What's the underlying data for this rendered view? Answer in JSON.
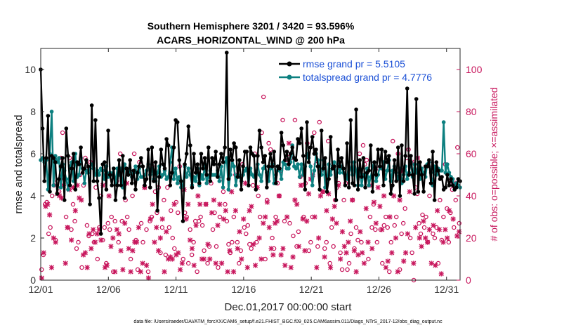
{
  "chart_data": {
    "type": "line",
    "title_line1": "Southern Hemisphere 3201 / 3420 = 93.596%",
    "title_line2": "ACARS_HORIZONTAL_WIND @ 200 hPa",
    "xlabel": "Dec.01,2017 00:00:00 start",
    "ylabel_left": "rmse and totalspread",
    "ylabel_right": "# of obs: o=possible; ×=assimilated",
    "xlim": [
      0,
      31
    ],
    "ylim_left": [
      0,
      11
    ],
    "ylim_right": [
      0,
      110
    ],
    "xtick_values": [
      0,
      5,
      10,
      15,
      20,
      25,
      30
    ],
    "xtick_labels": [
      "12/01",
      "12/06",
      "12/11",
      "12/16",
      "12/21",
      "12/26",
      "12/31"
    ],
    "ytick_left": [
      "0",
      "2",
      "4",
      "6",
      "8",
      "10"
    ],
    "ytick_right": [
      "0",
      "20",
      "40",
      "60",
      "80",
      "100"
    ],
    "colors": {
      "rmse": "#000000",
      "totalspread": "#0d8080",
      "obs": "#c8175d",
      "legend_text": "#1a4fd6"
    },
    "series": [
      {
        "name": "rmse grand pr = 5.5105",
        "color": "#000000",
        "values": [
          10.0,
          7.2,
          4.7,
          5.8,
          7.8,
          4.2,
          5.9,
          5.8,
          5.6,
          4.1,
          4.8,
          5.4,
          5.8,
          3.8,
          7.2,
          5.9,
          4.5,
          5.3,
          6.0,
          4.3,
          5.6,
          5.5,
          6.3,
          5.1,
          5.3,
          5.7,
          5.4,
          3.6,
          8.3,
          4.7,
          7.6,
          4.7,
          3.9,
          2.2,
          5.5,
          5.6,
          4.3,
          7.1,
          5.0,
          4.5,
          5.3,
          3.8,
          4.5,
          5.7,
          4.5,
          5.9,
          3.9,
          5.3,
          5.0,
          5.7,
          4.6,
          5.2,
          4.3,
          5.1,
          5.4,
          5.8,
          5.4,
          4.5,
          4.8,
          6.2,
          4.4,
          6.3,
          4.7,
          5.6,
          3.3,
          4.9,
          6.2,
          5.5,
          5.3,
          6.7,
          6.4,
          4.5,
          5.1,
          6.3,
          7.6,
          7.5,
          5.7,
          4.7,
          2.8,
          5.5,
          6.0,
          7.3,
          6.4,
          4.4,
          6.0,
          5.1,
          5.5,
          4.6,
          6.0,
          5.3,
          5.8,
          5.0,
          6.3,
          4.7,
          5.8,
          5.5,
          6.1,
          4.9,
          5.5,
          6.0,
          5.6,
          6.3,
          10.8,
          4.8,
          6.2,
          5.7,
          6.5,
          6.3,
          4.9,
          5.7,
          4.3,
          5.4,
          6.1,
          6.1,
          4.5,
          6.3,
          6.0,
          5.9,
          4.3,
          5.9,
          7.1,
          6.3,
          5.6,
          5.9,
          4.4,
          5.4,
          6.0,
          5.4,
          6.1,
          4.6,
          5.4,
          5.3,
          7.0,
          6.4,
          5.7,
          6.1,
          5.5,
          6.0,
          6.3,
          5.8,
          5.7,
          6.7,
          6.5,
          7.2,
          5.9,
          4.3,
          7.5,
          5.6,
          6.3,
          6.8,
          6.0,
          6.2,
          5.4,
          4.3,
          7.1,
          5.3,
          5.8,
          4.2,
          4.8,
          6.8,
          5.3,
          5.4,
          3.8,
          6.2,
          5.4,
          5.8,
          5.3,
          4.5,
          6.5,
          4.4,
          7.6,
          4.6,
          4.5,
          8.1,
          4.3,
          5.7,
          4.9,
          5.8,
          4.4,
          5.1,
          5.2,
          6.4,
          4.2,
          5.6,
          5.0,
          6.2,
          5.4,
          6.2,
          4.5,
          6.1,
          5.6,
          5.9,
          4.1,
          4.5,
          5.7,
          4.7,
          6.3,
          4.0,
          6.4,
          4.7,
          5.9,
          9.1,
          5.0,
          5.9,
          5.0,
          4.1,
          8.6,
          4.2,
          5.6,
          5.0,
          4.2,
          5.4,
          5.4,
          5.7,
          4.6,
          6.1,
          3.8,
          5.6,
          5.2,
          4.8,
          4.9,
          4.3,
          4.4,
          5.0,
          4.5,
          4.8,
          4.5,
          4.3,
          4.4,
          4.8,
          4.7
        ]
      },
      {
        "name": "totalspread grand pr = 4.7776",
        "color": "#0d8080",
        "values": [
          5.7,
          5.8,
          5.6,
          5.7,
          4.3,
          6.0,
          8.0,
          4.5,
          5.9,
          5.6,
          5.8,
          4.4,
          5.5,
          5.2,
          4.8,
          4.3,
          5.4,
          5.6,
          4.7,
          6.0,
          4.9,
          5.0,
          5.8,
          5.3,
          4.6,
          5.2,
          5.1,
          5.3,
          5.5,
          5.3,
          5.0,
          5.2,
          5.0,
          5.3,
          5.2,
          4.8,
          5.4,
          4.9,
          5.1,
          5.0,
          5.3,
          4.6,
          5.3,
          5.0,
          5.3,
          4.4,
          5.5,
          5.3,
          5.0,
          5.2,
          4.9,
          5.1,
          5.4,
          4.8,
          5.3,
          4.9,
          4.9,
          5.0,
          5.2,
          5.5,
          5.0,
          5.3,
          4.8,
          4.7,
          5.1,
          5.4,
          4.9,
          5.0,
          5.2,
          4.8,
          4.9,
          5.6,
          6.3,
          4.8,
          5.3,
          4.6,
          4.9,
          4.4,
          4.5,
          5.4,
          4.9,
          5.3,
          5.0,
          4.5,
          4.9,
          4.7,
          5.3,
          4.5,
          5.0,
          4.8,
          5.5,
          4.6,
          4.9,
          5.2,
          5.0,
          5.0,
          5.0,
          5.2,
          4.7,
          5.4,
          4.4,
          5.6,
          5.8,
          4.3,
          5.0,
          5.7,
          5.4,
          4.5,
          5.0,
          4.9,
          4.7,
          5.0,
          5.2,
          5.3,
          4.5,
          5.3,
          5.0,
          4.9,
          5.1,
          5.5,
          5.0,
          4.7,
          5.3,
          5.4,
          5.1,
          4.7,
          5.3,
          5.5,
          4.6,
          5.0,
          5.4,
          5.2,
          4.8,
          5.6,
          5.5,
          5.3,
          5.3,
          5.6,
          6.4,
          5.4,
          5.3,
          5.5,
          4.9,
          5.5,
          5.0,
          5.4,
          6.0,
          5.8,
          5.4,
          4.5,
          5.2,
          6.0,
          5.7,
          5.3,
          5.0,
          5.7,
          4.4,
          4.6,
          5.5,
          5.0,
          5.4,
          5.6,
          4.9,
          5.5,
          5.1,
          5.4,
          5.1,
          5.0,
          4.8,
          5.6,
          5.3,
          5.0,
          5.6,
          5.2,
          4.5,
          5.3,
          4.5,
          5.0,
          4.9,
          5.3,
          4.5,
          4.9,
          5.4,
          5.6,
          4.7,
          5.0,
          5.4,
          5.3,
          5.6,
          4.8,
          5.2,
          5.7,
          4.7,
          5.2,
          5.4,
          5.1,
          4.8,
          5.3,
          4.6,
          5.0,
          5.4,
          4.8,
          5.1,
          5.6,
          4.9,
          5.5,
          5.1,
          5.5,
          4.8,
          5.3,
          5.1,
          4.9,
          5.5,
          5.6,
          5.1,
          4.5,
          5.4,
          5.0,
          5.3,
          5.2,
          5.2,
          7.5,
          5.1,
          5.5,
          5.1,
          4.9,
          4.8,
          4.3,
          4.6,
          4.5,
          4.4
        ]
      }
    ],
    "obs_possible": [
      5,
      12,
      36,
      37,
      22,
      25,
      40,
      45,
      19,
      47,
      42,
      58,
      70,
      48,
      30,
      25,
      58,
      24,
      36,
      28,
      15,
      18,
      50,
      6,
      45,
      58,
      26,
      21,
      56,
      22,
      18,
      44,
      10,
      25,
      40,
      19,
      25,
      8,
      27,
      24,
      30,
      4,
      28,
      47,
      18,
      60,
      28,
      46,
      38,
      30,
      24,
      10,
      40,
      60,
      19,
      5,
      56,
      27,
      18,
      44,
      24,
      4,
      28,
      30,
      55,
      42,
      32,
      44,
      13,
      25,
      38,
      12,
      44,
      25,
      33,
      20,
      15,
      37,
      32,
      54,
      46,
      10,
      32,
      30,
      8,
      24,
      12,
      18,
      28,
      4,
      28,
      30,
      26,
      14,
      36,
      8,
      16,
      46,
      24,
      32,
      16,
      6,
      30,
      48,
      42,
      36,
      28,
      17,
      13,
      18,
      30,
      50,
      18,
      8,
      14,
      55,
      25,
      22,
      26,
      17,
      15,
      45,
      60,
      18,
      40,
      30,
      70,
      87,
      10,
      38,
      65,
      62,
      20,
      15,
      30,
      46,
      40,
      52,
      76,
      28,
      57,
      60,
      27,
      58,
      21,
      76,
      16,
      23,
      49,
      45,
      30,
      46,
      65,
      14,
      18,
      30,
      70,
      55,
      16,
      75,
      52,
      42,
      15,
      18,
      66,
      8,
      25,
      16,
      38,
      44,
      46,
      13,
      5,
      38,
      46,
      5,
      8,
      22,
      38,
      15,
      25,
      19,
      60,
      18,
      64,
      55,
      57,
      10,
      30,
      25,
      36,
      24,
      18,
      53,
      24,
      8,
      26,
      30,
      25,
      4,
      18,
      66,
      26,
      30,
      60,
      5,
      22,
      27,
      34,
      58,
      62,
      20,
      13,
      0,
      44,
      41,
      27,
      22,
      31,
      25,
      30,
      18,
      40,
      55,
      22,
      20,
      25,
      8,
      38,
      19,
      30,
      55,
      34,
      18,
      32,
      43,
      25,
      38,
      63,
      27
    ],
    "obs_assimilated": [
      1,
      13,
      35,
      36,
      31,
      6,
      20,
      18,
      41,
      40,
      39,
      45,
      8,
      25,
      43,
      19,
      44,
      33,
      45,
      39,
      38,
      12,
      13,
      6,
      22,
      15,
      24,
      18,
      22,
      24,
      19,
      45,
      6,
      7,
      40,
      16,
      20,
      4,
      24,
      22,
      14,
      5,
      27,
      46,
      15,
      4,
      14,
      18,
      18,
      25,
      4,
      8,
      44,
      7,
      1,
      29,
      36,
      18,
      25,
      14,
      20,
      29,
      4,
      23,
      10,
      11,
      10,
      36,
      12,
      13,
      5,
      8,
      43,
      29,
      36,
      19,
      15,
      7,
      26,
      40,
      36,
      10,
      10,
      36,
      17,
      10,
      32,
      38,
      8,
      26,
      36,
      8,
      29,
      33,
      4,
      14,
      42,
      4,
      33,
      15,
      23,
      10,
      29,
      46,
      6,
      33,
      35,
      17,
      7,
      44,
      20,
      10,
      27,
      30,
      37,
      25,
      15,
      12,
      27,
      28,
      40,
      12,
      15,
      7,
      30,
      65,
      6,
      11,
      38,
      36,
      16,
      45,
      29,
      14,
      28,
      41,
      48,
      50,
      30,
      6,
      20,
      40,
      42,
      11,
      33,
      41,
      6,
      29,
      35,
      27,
      45,
      10,
      23,
      16,
      13,
      18,
      28,
      38,
      14,
      4,
      12,
      23,
      13,
      8,
      34,
      18,
      45,
      15,
      37,
      27,
      44,
      35,
      24,
      40,
      6,
      9,
      30,
      13,
      40,
      20,
      4,
      38,
      52,
      9,
      13,
      22,
      42,
      56,
      8,
      25,
      58,
      20,
      16,
      28,
      20,
      18,
      24,
      8,
      26,
      7,
      33,
      24,
      3,
      18,
      24,
      20,
      33,
      47,
      29,
      46,
      21,
      23
    ]
  },
  "legend": {
    "rmse": "rmse grand pr = 5.5105",
    "totalspread": "totalspread grand pr = 4.7776"
  },
  "footer": "data file: /Users/raeder/DAI/ATM_forcXX/CAM6_setup/f.e21.FHIST_BGC.f09_025.CAM6assim.011/Diags_NTrS_2017-12/obs_diag_output.nc"
}
